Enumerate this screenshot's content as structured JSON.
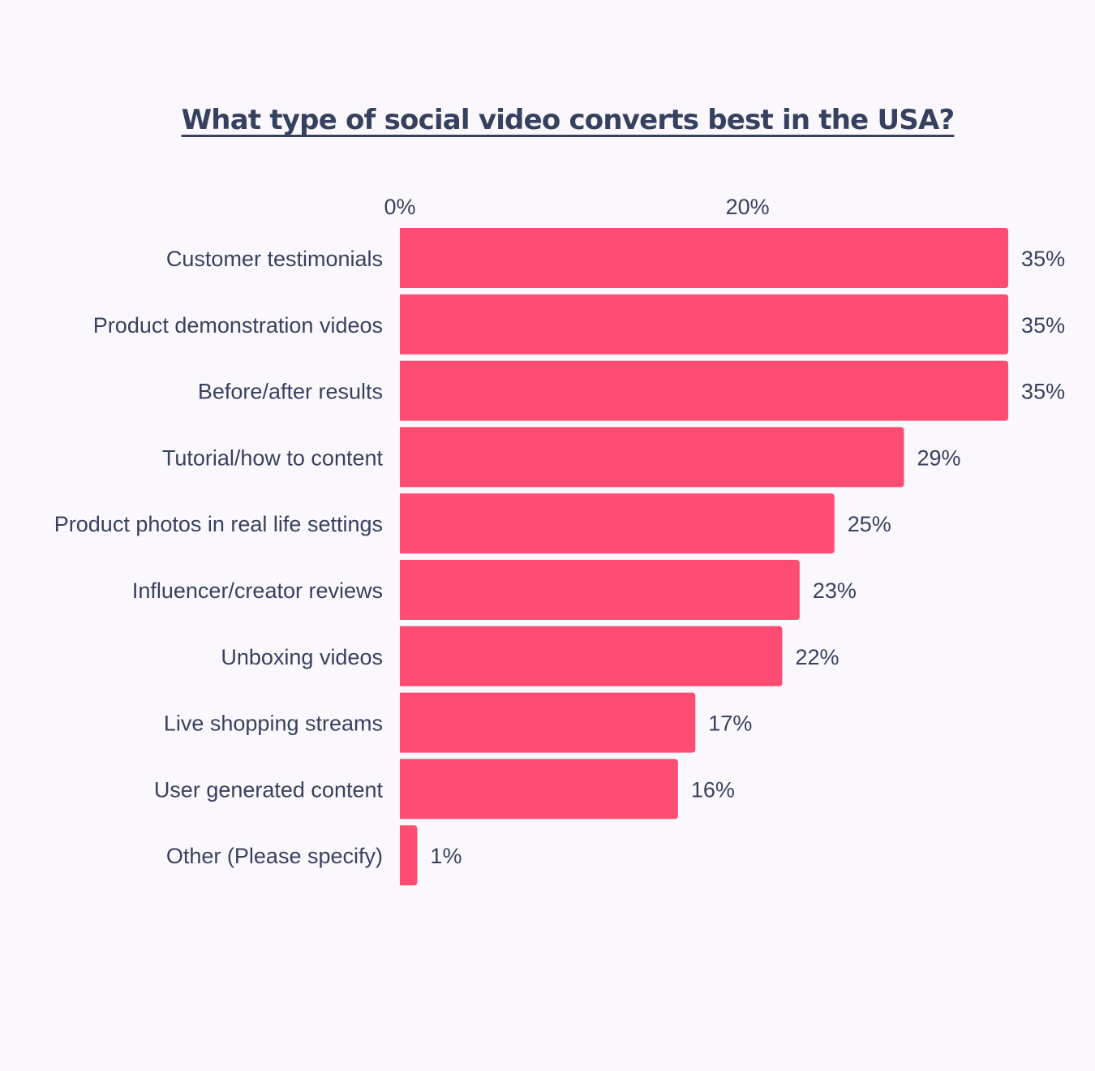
{
  "chart_data": {
    "type": "bar",
    "orientation": "horizontal",
    "title": "What type of social video converts best in the USA?",
    "xlabel": "",
    "ylabel": "",
    "xlim": [
      0,
      35
    ],
    "x_ticks": [
      {
        "value": 0,
        "label": "0%"
      },
      {
        "value": 20,
        "label": "20%"
      }
    ],
    "x_axis_position": "top",
    "grid": false,
    "legend": "none",
    "categories": [
      "Customer testimonials",
      "Product demonstration videos",
      "Before/after results",
      "Tutorial/how to content",
      "Product photos in real life settings",
      "Influencer/creator reviews",
      "Unboxing videos",
      "Live shopping streams",
      "User generated content",
      "Other (Please specify)"
    ],
    "values": [
      35,
      35,
      35,
      29,
      25,
      23,
      22,
      17,
      16,
      1
    ],
    "value_labels": [
      "35%",
      "35%",
      "35%",
      "29%",
      "25%",
      "23%",
      "22%",
      "17%",
      "16%",
      "1%"
    ],
    "colors": {
      "bar": "#ff4c73",
      "text": "#364160",
      "background": "#fbf8fd"
    }
  }
}
